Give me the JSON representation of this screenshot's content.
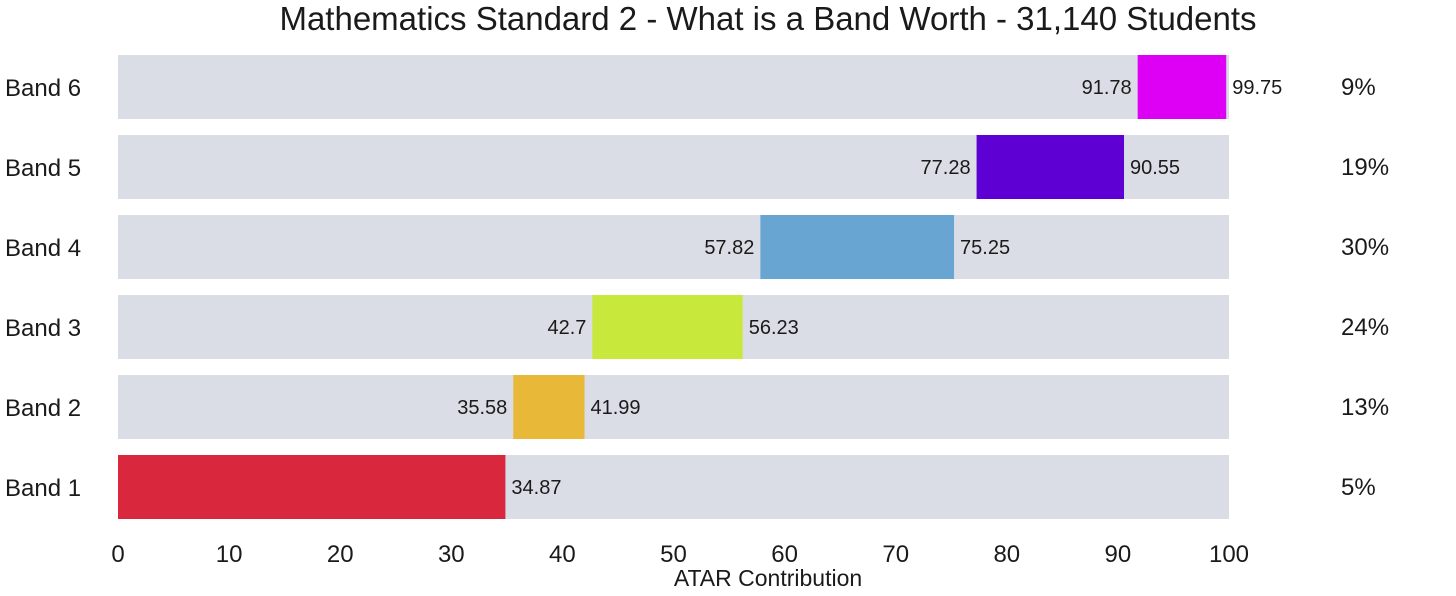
{
  "chart_data": {
    "type": "bar",
    "orientation": "horizontal-floating-range",
    "title": "Mathematics Standard 2 - What is a Band Worth - 31,140 Students",
    "xlabel": "ATAR Contribution",
    "ylabel": "",
    "xlim": [
      0,
      100
    ],
    "xticks": [
      0,
      10,
      20,
      30,
      40,
      50,
      60,
      70,
      80,
      90,
      100
    ],
    "background_color": "#dadde5",
    "bands": [
      {
        "name": "Band 6",
        "start": 91.78,
        "end": 99.75,
        "start_label": "91.78",
        "end_label": "99.75",
        "percent": "9%",
        "color": "#dd00f5"
      },
      {
        "name": "Band 5",
        "start": 77.28,
        "end": 90.55,
        "start_label": "77.28",
        "end_label": "90.55",
        "percent": "19%",
        "color": "#5e00d3"
      },
      {
        "name": "Band 4",
        "start": 57.82,
        "end": 75.25,
        "start_label": "57.82",
        "end_label": "75.25",
        "percent": "30%",
        "color": "#68a5d2"
      },
      {
        "name": "Band 3",
        "start": 42.7,
        "end": 56.23,
        "start_label": "42.7",
        "end_label": "56.23",
        "percent": "24%",
        "color": "#c8e83c"
      },
      {
        "name": "Band 2",
        "start": 35.58,
        "end": 41.99,
        "start_label": "35.58",
        "end_label": "41.99",
        "percent": "13%",
        "color": "#e8b838"
      },
      {
        "name": "Band 1",
        "start": 0,
        "end": 34.87,
        "start_label": "",
        "end_label": "34.87",
        "percent": "5%",
        "color": "#d9273e"
      }
    ]
  }
}
